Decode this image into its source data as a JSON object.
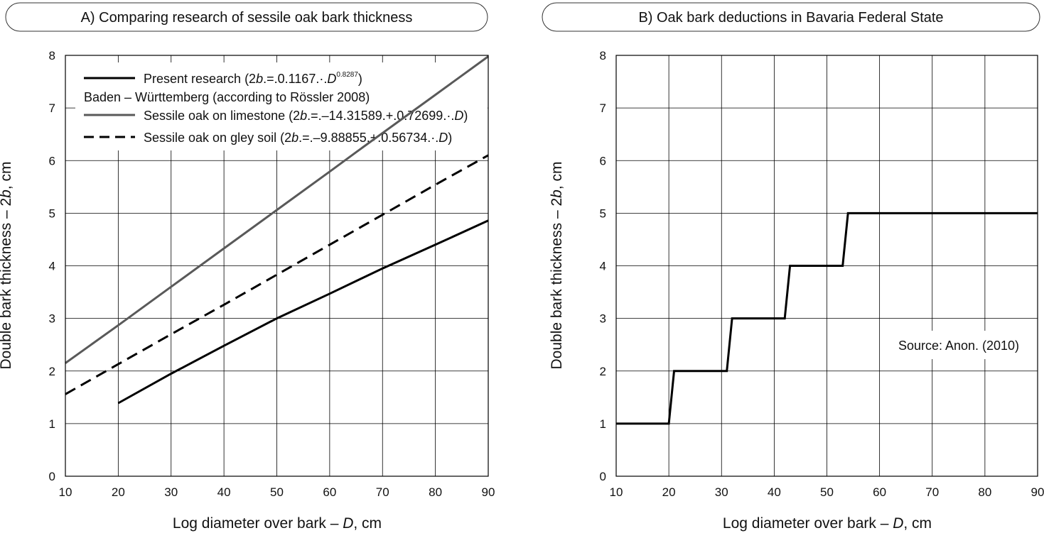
{
  "chart_data": [
    {
      "type": "line",
      "title": "A) Comparing research of sessile oak bark thickness",
      "xlabel_parts": [
        "Log diameter over bark  –  ",
        "D",
        ",  cm"
      ],
      "ylabel_parts": [
        "Double bark thickness  –  2",
        "b",
        ", cm"
      ],
      "xlim": [
        10,
        90
      ],
      "ylim": [
        0,
        8
      ],
      "xticks": [
        "10",
        "20",
        "30",
        "40",
        "50",
        "60",
        "70",
        "80",
        "90"
      ],
      "yticks": [
        "0",
        "1",
        "2",
        "3",
        "4",
        "5",
        "6",
        "7",
        "8"
      ],
      "grid": true,
      "legend_position": "top-left",
      "legend": {
        "present": {
          "pre": "Present research (2",
          "b": "b",
          "mid": ".=.0.1167.·.",
          "d": "D",
          "sup": "0.8287",
          "post": ")"
        },
        "group_label": "Baden – Württemberg (according to Rössler 2008)",
        "limestone": {
          "pre": "Sessile oak on limestone (2",
          "b": "b",
          "mid": ".=.–14.31589.+.0.72699.·.",
          "d": "D",
          "post": ")"
        },
        "gley": {
          "pre": "Sessile oak on gley soil (2",
          "b": "b",
          "mid": ".=.–9.88855.+.0.56734.·.",
          "d": "D",
          "post": ")"
        }
      },
      "series": [
        {
          "key": "present",
          "style": "solid",
          "color": "#000000",
          "x": [
            20,
            30,
            40,
            50,
            60,
            70,
            80,
            90
          ],
          "y": [
            1.39,
            1.95,
            2.48,
            3.0,
            3.47,
            3.95,
            4.4,
            4.86
          ]
        },
        {
          "key": "limestone",
          "style": "solid",
          "color": "#595959",
          "x": [
            10,
            20,
            30,
            40,
            50,
            60,
            65,
            80,
            90
          ],
          "y": [
            2.15,
            2.87,
            3.6,
            4.33,
            5.06,
            5.79,
            6.16,
            7.25,
            7.98
          ]
        },
        {
          "key": "gley",
          "style": "dashed",
          "color": "#000000",
          "x": [
            10,
            20,
            30,
            40,
            50,
            60,
            70,
            80,
            90
          ],
          "y": [
            1.56,
            2.13,
            2.7,
            3.26,
            3.83,
            4.4,
            4.97,
            5.54,
            6.1
          ]
        }
      ]
    },
    {
      "type": "line",
      "title": "B) Oak bark deductions in Bavaria Federal State",
      "xlabel_parts": [
        "Log diameter over bark  –  ",
        "D",
        ",  cm"
      ],
      "ylabel_parts": [
        "Double bark thickness  –  2",
        "b",
        ", cm"
      ],
      "xlim": [
        10,
        90
      ],
      "ylim": [
        0,
        8
      ],
      "xticks": [
        "10",
        "20",
        "30",
        "40",
        "50",
        "60",
        "70",
        "80",
        "90"
      ],
      "yticks": [
        "0",
        "1",
        "2",
        "3",
        "4",
        "5",
        "6",
        "7",
        "8"
      ],
      "grid": true,
      "annotation": "Source: Anon. (2010)",
      "series": [
        {
          "key": "bavaria",
          "style": "solid",
          "color": "#000000",
          "x": [
            10,
            20,
            21,
            31,
            32,
            42,
            43,
            53,
            54,
            90
          ],
          "y": [
            1,
            1,
            2,
            2,
            3,
            3,
            4,
            4,
            5,
            5
          ]
        }
      ]
    }
  ]
}
